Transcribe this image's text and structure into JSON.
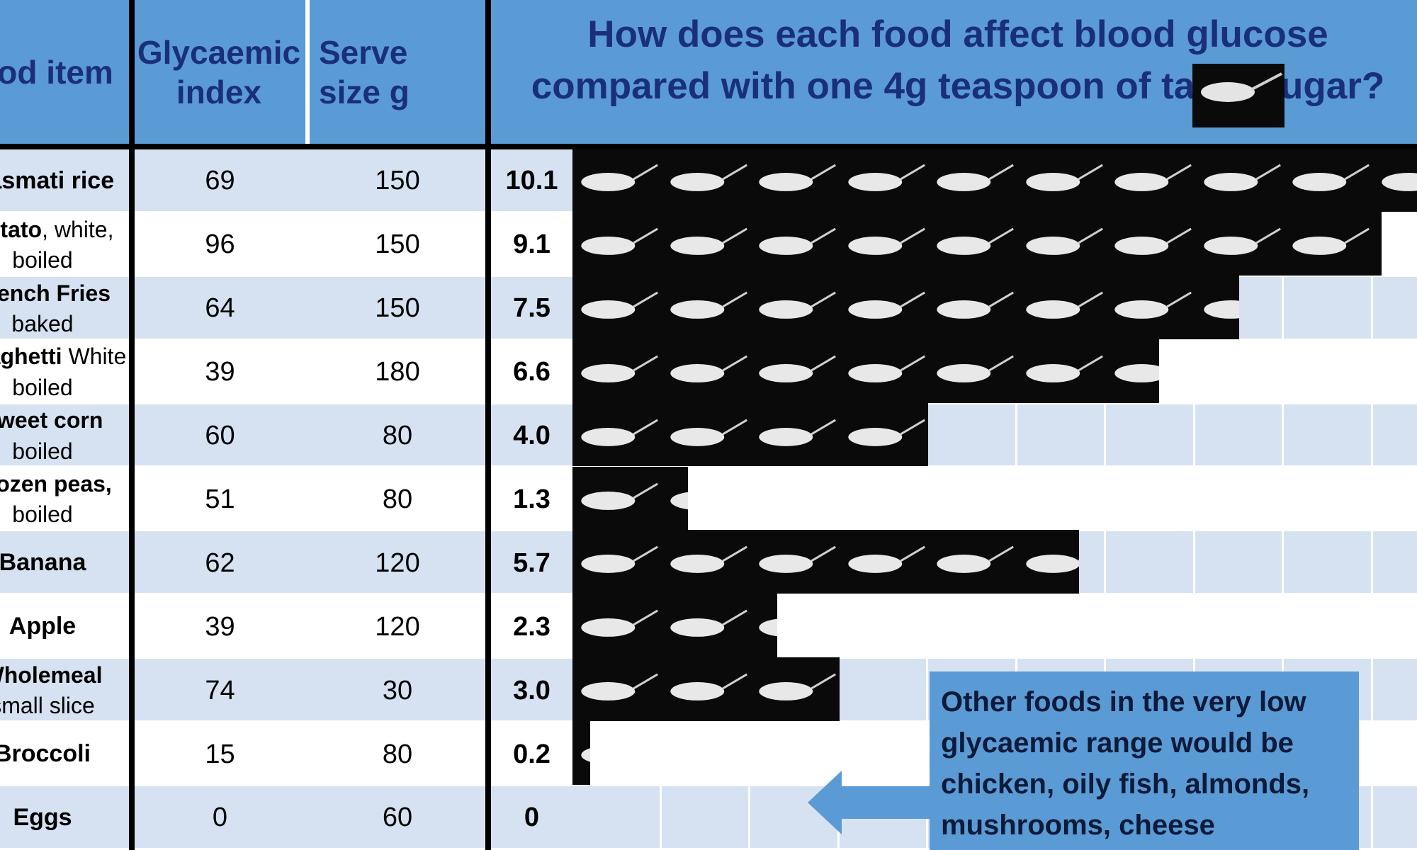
{
  "header": {
    "food_item": "Food item",
    "glycaemic_index": "Glycaemic index",
    "serve_size": "Serve size g",
    "question": "How does each food affect blood glucose compared with one 4g teaspoon of table sugar?"
  },
  "callout": {
    "text": "Other foods in the very low glycaemic range would be chicken, oily fish, almonds, mushrooms, cheese"
  },
  "rows": [
    {
      "food": "Basmati rice",
      "food_bold": "Basmati rice",
      "food_rest": "",
      "food_line2": "",
      "gi": "69",
      "serve": "150",
      "teaspoons": "10.1"
    },
    {
      "food": "Potato, white, boiled",
      "food_bold": "Potato",
      "food_rest": ", white,",
      "food_line2": "boiled",
      "gi": "96",
      "serve": "150",
      "teaspoons": "9.1"
    },
    {
      "food": "French Fries baked",
      "food_bold": "French Fries",
      "food_rest": "",
      "food_line2": "baked",
      "gi": "64",
      "serve": "150",
      "teaspoons": "7.5"
    },
    {
      "food": "Spaghetti White boiled",
      "food_bold": "Spaghetti",
      "food_rest": " White",
      "food_line2": "boiled",
      "gi": "39",
      "serve": "180",
      "teaspoons": "6.6"
    },
    {
      "food": "Sweet corn boiled",
      "food_bold": "Sweet corn",
      "food_rest": "",
      "food_line2": "boiled",
      "gi": "60",
      "serve": "80",
      "teaspoons": "4.0"
    },
    {
      "food": "Frozen peas, boiled",
      "food_bold": "Frozen peas,",
      "food_rest": "",
      "food_line2": "boiled",
      "gi": "51",
      "serve": "80",
      "teaspoons": "1.3"
    },
    {
      "food": "Banana",
      "food_bold": "Banana",
      "food_rest": "",
      "food_line2": "",
      "gi": "62",
      "serve": "120",
      "teaspoons": "5.7"
    },
    {
      "food": "Apple",
      "food_bold": "Apple",
      "food_rest": "",
      "food_line2": "",
      "gi": "39",
      "serve": "120",
      "teaspoons": "2.3"
    },
    {
      "food": "Wholemeal small slice",
      "food_bold": "Wholemeal",
      "food_rest": "",
      "food_line2": "small slice",
      "gi": "74",
      "serve": "30",
      "teaspoons": "3.0"
    },
    {
      "food": "Broccoli",
      "food_bold": "Broccoli",
      "food_rest": "",
      "food_line2": "",
      "gi": "15",
      "serve": "80",
      "teaspoons": "0.2"
    },
    {
      "food": "Eggs",
      "food_bold": "Eggs",
      "food_rest": "",
      "food_line2": "",
      "gi": "0",
      "serve": "60",
      "teaspoons": "0"
    }
  ],
  "chart_data": {
    "type": "bar",
    "title": "How does each food affect blood glucose compared with one 4g teaspoon of table sugar?",
    "categories": [
      "Basmati rice",
      "Potato, white, boiled",
      "French Fries baked",
      "Spaghetti White boiled",
      "Sweet corn boiled",
      "Frozen peas, boiled",
      "Banana",
      "Apple",
      "Wholemeal small slice",
      "Broccoli",
      "Eggs"
    ],
    "values": [
      10.1,
      9.1,
      7.5,
      6.6,
      4.0,
      1.3,
      5.7,
      2.3,
      3.0,
      0.2,
      0
    ],
    "xlabel": "",
    "ylabel": ""
  },
  "colors": {
    "header_blue": "#5b9bd5",
    "row_light": "#d6e2f1",
    "header_text": "#1a2f7a",
    "spoon_bg": "#0a0a0a",
    "spoon": "#e8e8e8"
  },
  "icons": {
    "teaspoon": "sugar-teaspoon-icon",
    "arrow": "arrow-left-icon"
  }
}
